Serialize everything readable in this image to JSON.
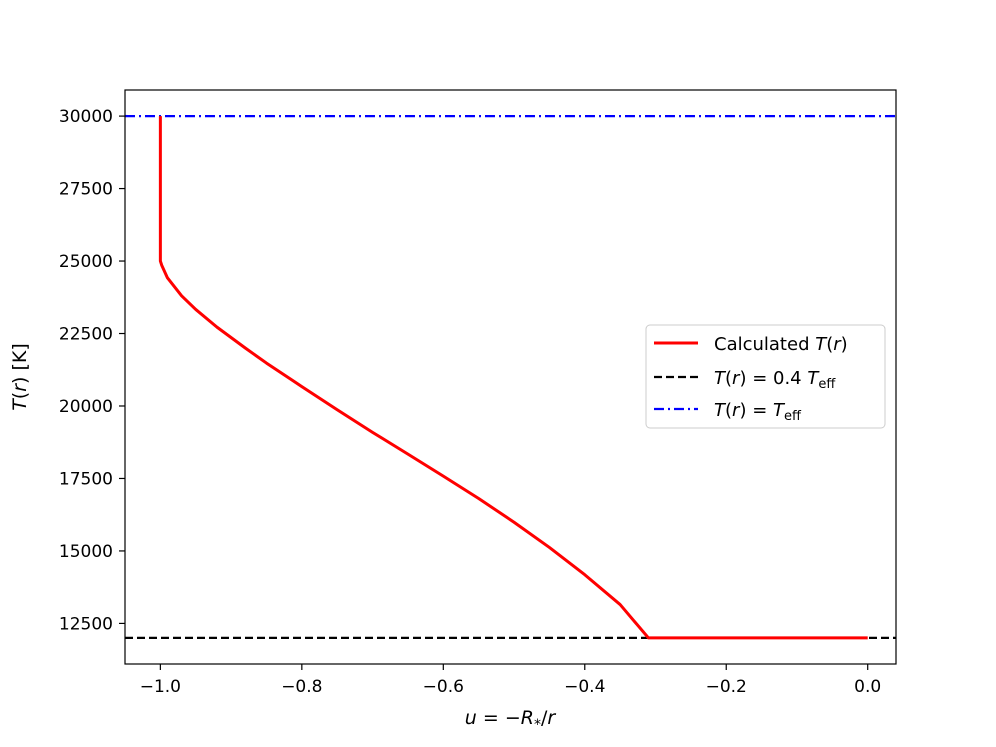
{
  "chart_data": {
    "type": "line",
    "title": "",
    "xlabel": {
      "prefix_var": "u",
      "eq": " = −",
      "var": "R",
      "sub": "*",
      "suffix": "/",
      "var2": "r",
      "text": "u = −R*/r"
    },
    "ylabel": {
      "var": "T",
      "paren_open": "(",
      "arg": "r",
      "paren_close": ")",
      "unit": " [K]",
      "text": "T(r) [K]"
    },
    "xlim": [
      -1.05,
      0.04
    ],
    "ylim": [
      11100,
      30900
    ],
    "x_ticks": [
      {
        "value": -1.0,
        "label": "−1.0"
      },
      {
        "value": -0.8,
        "label": "−0.8"
      },
      {
        "value": -0.6,
        "label": "−0.6"
      },
      {
        "value": -0.4,
        "label": "−0.4"
      },
      {
        "value": -0.2,
        "label": "−0.2"
      },
      {
        "value": 0.0,
        "label": "0.0"
      }
    ],
    "y_ticks": [
      {
        "value": 12500,
        "label": "12500"
      },
      {
        "value": 15000,
        "label": "15000"
      },
      {
        "value": 17500,
        "label": "17500"
      },
      {
        "value": 20000,
        "label": "20000"
      },
      {
        "value": 22500,
        "label": "22500"
      },
      {
        "value": 25000,
        "label": "25000"
      },
      {
        "value": 27500,
        "label": "27500"
      },
      {
        "value": 30000,
        "label": "30000"
      }
    ],
    "grid": false,
    "legend_position": "center-right",
    "series": [
      {
        "name": "Calculated T(r)",
        "legend": {
          "pre": "Calculated ",
          "var": "T",
          "open": "(",
          "arg": "r",
          "close": ")"
        },
        "style": "solid",
        "color": "#ff0000",
        "x": [
          -1.0,
          -1.0,
          -0.998,
          -0.99,
          -0.97,
          -0.95,
          -0.92,
          -0.88,
          -0.85,
          -0.8,
          -0.75,
          -0.7,
          -0.65,
          -0.6,
          -0.55,
          -0.5,
          -0.45,
          -0.4,
          -0.35,
          -0.31,
          -0.3,
          -0.2,
          -0.1,
          0.0
        ],
        "y": [
          30000,
          25000,
          24850,
          24420,
          23800,
          23330,
          22720,
          22000,
          21480,
          20670,
          19870,
          19090,
          18340,
          17580,
          16810,
          15990,
          15120,
          14180,
          13150,
          12000,
          12000,
          12000,
          12000,
          12000
        ]
      },
      {
        "name": "T(r) = 0.4 Teff",
        "legend": {
          "var": "T",
          "open": "(",
          "arg": "r",
          "close": ")",
          "eq": " = 0.4 ",
          "var2": "T",
          "sub": "eff"
        },
        "style": "dashed",
        "color": "#000000",
        "x": [
          -1.05,
          0.04
        ],
        "y": [
          12000,
          12000
        ]
      },
      {
        "name": "T(r) = Teff",
        "legend": {
          "var": "T",
          "open": "(",
          "arg": "r",
          "close": ")",
          "eq": " = ",
          "var2": "T",
          "sub": "eff"
        },
        "style": "dashdot",
        "color": "#0000ff",
        "x": [
          -1.05,
          0.04
        ],
        "y": [
          30000,
          30000
        ]
      }
    ]
  }
}
